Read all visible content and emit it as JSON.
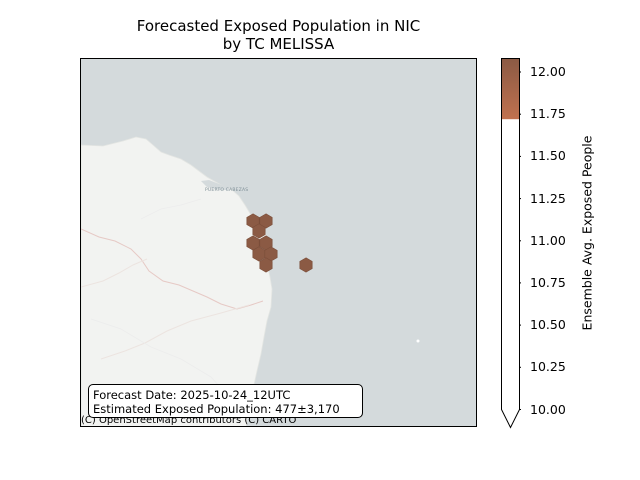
{
  "title": {
    "line1": "Forecasted Exposed Population in NIC",
    "line2": "by TC MELISSA"
  },
  "map": {
    "ocean_color": "#d4dadc",
    "land_color": "#f2f3f1",
    "hex_color": "#8b5a44",
    "place_labels": [
      "PUERTO CABEZAS"
    ],
    "attribution": "(C) OpenStreetMap contributors (C) CARTO"
  },
  "infobox": {
    "forecast_date": "Forecast Date: 2025-10-24_12UTC",
    "exposed_population": "Estimated Exposed Population: 477±3,170"
  },
  "colorbar": {
    "label": "Ensemble Avg. Exposed People",
    "range": [
      10.0,
      12.08
    ],
    "filled_from": 11.72,
    "colors": [
      "#c0714f",
      "#8b5a44"
    ],
    "ticks": [
      "10.00",
      "10.25",
      "10.50",
      "10.75",
      "11.00",
      "11.25",
      "11.50",
      "11.75",
      "12.00"
    ],
    "extend": "min"
  }
}
